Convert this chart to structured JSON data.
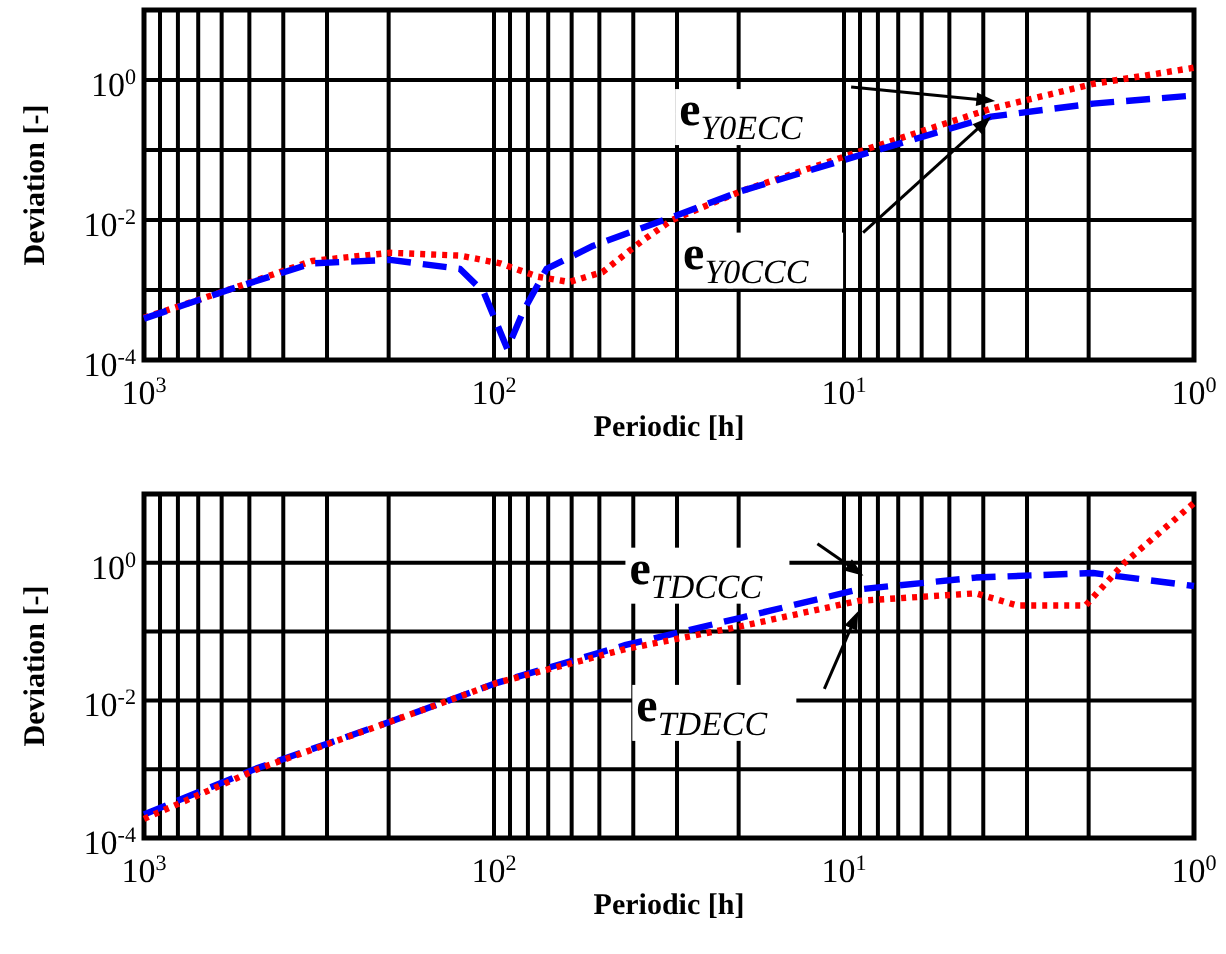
{
  "chart_data": [
    {
      "type": "line",
      "xlabel": "Periodic [h]",
      "ylabel": "Deviation [-]",
      "log": "xy",
      "grid": true,
      "marker": "none",
      "xlim": [
        1000,
        1
      ],
      "ylim": [
        0.0001,
        10
      ],
      "xticks": [
        {
          "value": 1000,
          "label": "10$^{3}$"
        },
        {
          "value": 900,
          "label": null
        },
        {
          "value": 800,
          "label": null
        },
        {
          "value": 700,
          "label": null
        },
        {
          "value": 600,
          "label": null
        },
        {
          "value": 500,
          "label": null
        },
        {
          "value": 400,
          "label": null
        },
        {
          "value": 300,
          "label": null
        },
        {
          "value": 200,
          "label": null
        },
        {
          "value": 100,
          "label": "10$^{2}$"
        },
        {
          "value": 90,
          "label": null
        },
        {
          "value": 80,
          "label": null
        },
        {
          "value": 70,
          "label": null
        },
        {
          "value": 60,
          "label": null
        },
        {
          "value": 50,
          "label": null
        },
        {
          "value": 40,
          "label": null
        },
        {
          "value": 30,
          "label": null
        },
        {
          "value": 20,
          "label": null
        },
        {
          "value": 10,
          "label": "10$^{1}$"
        },
        {
          "value": 9,
          "label": null
        },
        {
          "value": 8,
          "label": null
        },
        {
          "value": 7,
          "label": null
        },
        {
          "value": 6,
          "label": null
        },
        {
          "value": 5,
          "label": null
        },
        {
          "value": 4,
          "label": null
        },
        {
          "value": 3,
          "label": null
        },
        {
          "value": 2,
          "label": null
        },
        {
          "value": 1,
          "label": "10$^{0}$"
        }
      ],
      "yticks": [
        {
          "value": 0.0001,
          "label": "10$^{-4}$"
        },
        {
          "value": 0.001,
          "label": null
        },
        {
          "value": 0.01,
          "label": "10$^{-2}$"
        },
        {
          "value": 0.1,
          "label": null
        },
        {
          "value": 1,
          "label": "10$^{0}$"
        }
      ],
      "series": [
        {
          "color": "#ff0000",
          "line_style": "dotted",
          "x": [
            1000,
            553,
            331,
            198,
            125,
            96,
            75,
            61,
            49,
            38,
            31,
            19.6,
            9.1,
            3.8,
            1.94,
            1
          ],
          "values": [
            0.0004,
            0.00107,
            0.0026,
            0.0034,
            0.0031,
            0.0024,
            0.00155,
            0.0013,
            0.0018,
            0.0049,
            0.01,
            0.026,
            0.094,
            0.39,
            0.88,
            1.5
          ]
        },
        {
          "color": "#0000ff",
          "line_style": "dashed",
          "x": [
            1000,
            553,
            331,
            198,
            125,
            107,
            91.6,
            82.6,
            70.8,
            52,
            31,
            19.6,
            9.1,
            3.8,
            1.94,
            1
          ],
          "values": [
            0.00039,
            0.00107,
            0.0024,
            0.0027,
            0.002,
            0.00093,
            0.000144,
            0.00049,
            0.002,
            0.0043,
            0.011,
            0.026,
            0.083,
            0.3,
            0.46,
            0.6
          ]
        }
      ],
      "annotations": [
        {
          "text": "e$_{Y0ECC}$",
          "x": 3.7,
          "y": 0.5
        },
        {
          "text": "e$_{Y0CCC}$",
          "x": 3.8,
          "y": 0.3
        }
      ]
    },
    {
      "type": "line",
      "xlabel": "Periodic [h]",
      "ylabel": "Deviation [-]",
      "log": "xy",
      "grid": true,
      "marker": "none",
      "xlim": [
        1000,
        1
      ],
      "ylim": [
        0.0001,
        10
      ],
      "xticks": [
        {
          "value": 1000,
          "label": "10$^{3}$"
        },
        {
          "value": 900,
          "label": null
        },
        {
          "value": 800,
          "label": null
        },
        {
          "value": 700,
          "label": null
        },
        {
          "value": 600,
          "label": null
        },
        {
          "value": 500,
          "label": null
        },
        {
          "value": 400,
          "label": null
        },
        {
          "value": 300,
          "label": null
        },
        {
          "value": 200,
          "label": null
        },
        {
          "value": 100,
          "label": "10$^{2}$"
        },
        {
          "value": 90,
          "label": null
        },
        {
          "value": 80,
          "label": null
        },
        {
          "value": 70,
          "label": null
        },
        {
          "value": 60,
          "label": null
        },
        {
          "value": 50,
          "label": null
        },
        {
          "value": 40,
          "label": null
        },
        {
          "value": 30,
          "label": null
        },
        {
          "value": 20,
          "label": null
        },
        {
          "value": 10,
          "label": "10$^{1}$"
        },
        {
          "value": 9,
          "label": null
        },
        {
          "value": 8,
          "label": null
        },
        {
          "value": 7,
          "label": null
        },
        {
          "value": 6,
          "label": null
        },
        {
          "value": 5,
          "label": null
        },
        {
          "value": 4,
          "label": null
        },
        {
          "value": 3,
          "label": null
        },
        {
          "value": 2,
          "label": null
        },
        {
          "value": 1,
          "label": "10$^{0}$"
        }
      ],
      "yticks": [
        {
          "value": 0.0001,
          "label": "10$^{-4}$"
        },
        {
          "value": 0.001,
          "label": null
        },
        {
          "value": 0.01,
          "label": "10$^{-2}$"
        },
        {
          "value": 0.1,
          "label": null
        },
        {
          "value": 1,
          "label": "10$^{0}$"
        }
      ],
      "series": [
        {
          "color": "#0000ff",
          "line_style": "dashed",
          "x": [
            1000,
            474,
            198,
            98,
            42,
            19.6,
            9.1,
            4.2,
            1.94,
            1
          ],
          "values": [
            0.00022,
            0.00104,
            0.0049,
            0.018,
            0.064,
            0.16,
            0.41,
            0.61,
            0.71,
            0.46
          ]
        },
        {
          "color": "#ff0000",
          "line_style": "dotted",
          "x": [
            1000,
            474,
            198,
            98,
            42,
            19.6,
            9.1,
            4.2,
            3.2,
            2.04,
            1.58,
            1
          ],
          "values": [
            0.00019,
            0.001,
            0.0049,
            0.018,
            0.056,
            0.12,
            0.28,
            0.36,
            0.24,
            0.24,
            1.0,
            7.4
          ]
        }
      ],
      "annotations": [
        {
          "text": "e$_{TDCCC}$",
          "x": 8.8,
          "y": 0.65
        },
        {
          "text": "e$_{TDECC}$",
          "x": 9.1,
          "y": 0.2
        }
      ]
    }
  ]
}
